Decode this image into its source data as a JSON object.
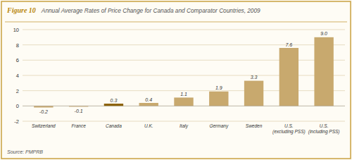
{
  "chart_data": {
    "type": "bar",
    "title": "Figure 10",
    "subtitle": "Annual Average Rates of Price Change for Canada and Comparator Countries, 2009",
    "annotations": [
      "Source: PMPRB"
    ],
    "categories": [
      "Switzerland",
      "France",
      "Canada",
      "U.K.",
      "Italy",
      "Germany",
      "Sweden",
      "U.S.\n(excluding PSS)",
      "U.S.\n(including PSS)"
    ],
    "values": [
      -0.2,
      -0.1,
      0.3,
      0.4,
      1.1,
      1.9,
      3.3,
      7.6,
      9.0
    ],
    "value_labels": [
      "-0.2",
      "-0.1",
      "0.3",
      "0.4",
      "1.1",
      "1.9",
      "3.3",
      "7.6",
      "9.0"
    ],
    "colors": [
      "#C8A96E",
      "#C8A96E",
      "#8B6000",
      "#C8A96E",
      "#C8A96E",
      "#C8A96E",
      "#C8A96E",
      "#C8A96E",
      "#C8A96E"
    ],
    "ylim": [
      -2,
      10
    ],
    "yticks": [
      -2,
      0,
      2,
      4,
      6,
      8,
      10
    ],
    "grid": true,
    "data_labels": true
  }
}
